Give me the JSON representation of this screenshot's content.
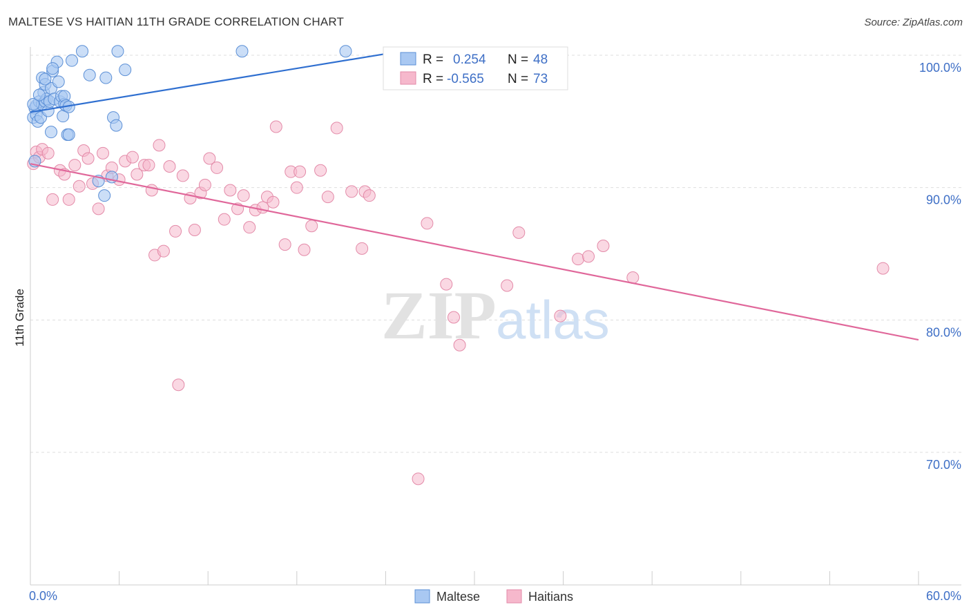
{
  "title": "MALTESE VS HAITIAN 11TH GRADE CORRELATION CHART",
  "source": "Source: ZipAtlas.com",
  "watermark": {
    "zip": "ZIP",
    "atlas": "atlas"
  },
  "colors": {
    "maltese_fill": "#a9c8f2",
    "maltese_stroke": "#5b8fd6",
    "maltese_line": "#2f6fd0",
    "haitian_fill": "#f6b8cc",
    "haitian_stroke": "#e38aa8",
    "haitian_line": "#e0679a",
    "tick_label": "#3e6fc6",
    "grid": "#dddddd"
  },
  "legend": {
    "rows": [
      {
        "r_label": "R =",
        "r_value": "0.254",
        "n_label": "N =",
        "n_value": "48"
      },
      {
        "r_label": "R =",
        "r_value": "-0.565",
        "n_label": "N =",
        "n_value": "73"
      }
    ]
  },
  "chart_data": {
    "type": "scatter",
    "xlabel": "",
    "ylabel": "11th Grade",
    "xlim": [
      0,
      60
    ],
    "ylim": [
      60,
      103.2
    ],
    "x_tick_labels": [
      "0.0%",
      "60.0%"
    ],
    "y_ticks": [
      100,
      90,
      80,
      70
    ],
    "y_tick_labels": [
      "100.0%",
      "90.0%",
      "80.0%",
      "70.0%"
    ],
    "grid": true,
    "legend_position": "top-center",
    "series": [
      {
        "name": "Maltese",
        "color": "#a9c8f2",
        "trend": {
          "x": [
            0,
            24.5
          ],
          "y": [
            95.7,
            100.2
          ]
        },
        "points": [
          [
            0.2,
            95.3
          ],
          [
            0.3,
            96.0
          ],
          [
            0.4,
            95.5
          ],
          [
            0.4,
            96.2
          ],
          [
            0.5,
            95.0
          ],
          [
            0.6,
            96.5
          ],
          [
            0.7,
            95.3
          ],
          [
            0.8,
            98.3
          ],
          [
            0.8,
            96.3
          ],
          [
            0.9,
            97.2
          ],
          [
            1.0,
            97.8
          ],
          [
            1.0,
            96.5
          ],
          [
            1.1,
            96.7
          ],
          [
            1.2,
            95.8
          ],
          [
            1.3,
            96.5
          ],
          [
            1.4,
            94.2
          ],
          [
            1.4,
            97.5
          ],
          [
            1.5,
            98.8
          ],
          [
            1.6,
            96.7
          ],
          [
            1.8,
            99.5
          ],
          [
            1.9,
            98.0
          ],
          [
            2.0,
            96.5
          ],
          [
            2.1,
            96.9
          ],
          [
            2.2,
            95.4
          ],
          [
            2.3,
            96.3
          ],
          [
            2.3,
            96.9
          ],
          [
            2.4,
            96.2
          ],
          [
            2.5,
            94.0
          ],
          [
            2.6,
            96.1
          ],
          [
            2.8,
            99.6
          ],
          [
            3.5,
            100.3
          ],
          [
            4.0,
            98.5
          ],
          [
            4.6,
            90.5
          ],
          [
            5.0,
            89.4
          ],
          [
            5.1,
            98.3
          ],
          [
            5.5,
            90.8
          ],
          [
            5.6,
            95.3
          ],
          [
            5.8,
            94.7
          ],
          [
            5.9,
            100.3
          ],
          [
            6.4,
            98.9
          ],
          [
            14.3,
            100.3
          ],
          [
            21.3,
            100.3
          ],
          [
            0.3,
            92.0
          ],
          [
            1.5,
            99.0
          ],
          [
            1.0,
            98.2
          ],
          [
            0.2,
            96.3
          ],
          [
            0.6,
            97.0
          ],
          [
            2.6,
            94.0
          ]
        ]
      },
      {
        "name": "Haitians",
        "color": "#f6b8cc",
        "trend": {
          "x": [
            0,
            60
          ],
          "y": [
            91.8,
            78.5
          ]
        },
        "points": [
          [
            0.2,
            91.8
          ],
          [
            0.4,
            92.7
          ],
          [
            0.6,
            92.3
          ],
          [
            0.8,
            92.9
          ],
          [
            1.2,
            92.6
          ],
          [
            1.5,
            89.1
          ],
          [
            2.0,
            91.3
          ],
          [
            2.3,
            91.0
          ],
          [
            2.6,
            89.1
          ],
          [
            3.0,
            91.7
          ],
          [
            3.3,
            90.1
          ],
          [
            3.6,
            92.8
          ],
          [
            3.9,
            92.2
          ],
          [
            4.2,
            90.3
          ],
          [
            4.6,
            88.4
          ],
          [
            4.9,
            92.6
          ],
          [
            5.2,
            90.9
          ],
          [
            5.5,
            91.5
          ],
          [
            6.0,
            90.6
          ],
          [
            6.4,
            92.0
          ],
          [
            6.9,
            92.3
          ],
          [
            7.2,
            91.0
          ],
          [
            7.7,
            91.7
          ],
          [
            8.0,
            91.7
          ],
          [
            8.2,
            89.8
          ],
          [
            8.4,
            84.9
          ],
          [
            8.7,
            93.2
          ],
          [
            9.0,
            85.2
          ],
          [
            9.4,
            91.6
          ],
          [
            9.8,
            86.7
          ],
          [
            10.0,
            75.1
          ],
          [
            10.3,
            90.9
          ],
          [
            10.8,
            89.2
          ],
          [
            11.1,
            86.8
          ],
          [
            11.5,
            89.6
          ],
          [
            11.8,
            90.2
          ],
          [
            12.1,
            92.2
          ],
          [
            12.6,
            91.5
          ],
          [
            13.1,
            87.6
          ],
          [
            13.5,
            89.8
          ],
          [
            14.0,
            88.4
          ],
          [
            14.4,
            89.4
          ],
          [
            14.8,
            87.0
          ],
          [
            15.2,
            88.3
          ],
          [
            15.7,
            88.5
          ],
          [
            16.0,
            89.3
          ],
          [
            16.4,
            88.9
          ],
          [
            16.6,
            94.6
          ],
          [
            17.2,
            85.7
          ],
          [
            17.6,
            91.2
          ],
          [
            18.0,
            90.0
          ],
          [
            18.2,
            91.2
          ],
          [
            18.5,
            85.3
          ],
          [
            19.0,
            87.1
          ],
          [
            19.6,
            91.3
          ],
          [
            20.1,
            89.3
          ],
          [
            20.7,
            94.5
          ],
          [
            21.7,
            89.7
          ],
          [
            22.4,
            85.4
          ],
          [
            22.6,
            89.7
          ],
          [
            22.9,
            89.4
          ],
          [
            26.2,
            68.0
          ],
          [
            26.8,
            87.3
          ],
          [
            28.1,
            82.7
          ],
          [
            28.6,
            80.2
          ],
          [
            29.0,
            78.1
          ],
          [
            32.2,
            82.6
          ],
          [
            33.0,
            86.6
          ],
          [
            35.8,
            80.3
          ],
          [
            37.0,
            84.6
          ],
          [
            37.7,
            84.8
          ],
          [
            38.7,
            85.6
          ],
          [
            40.7,
            83.2
          ]
        ]
      }
    ],
    "extra_haitian_point": [
      57.6,
      83.9
    ]
  },
  "bottom_legend": {
    "items": [
      "Maltese",
      "Haitians"
    ]
  }
}
